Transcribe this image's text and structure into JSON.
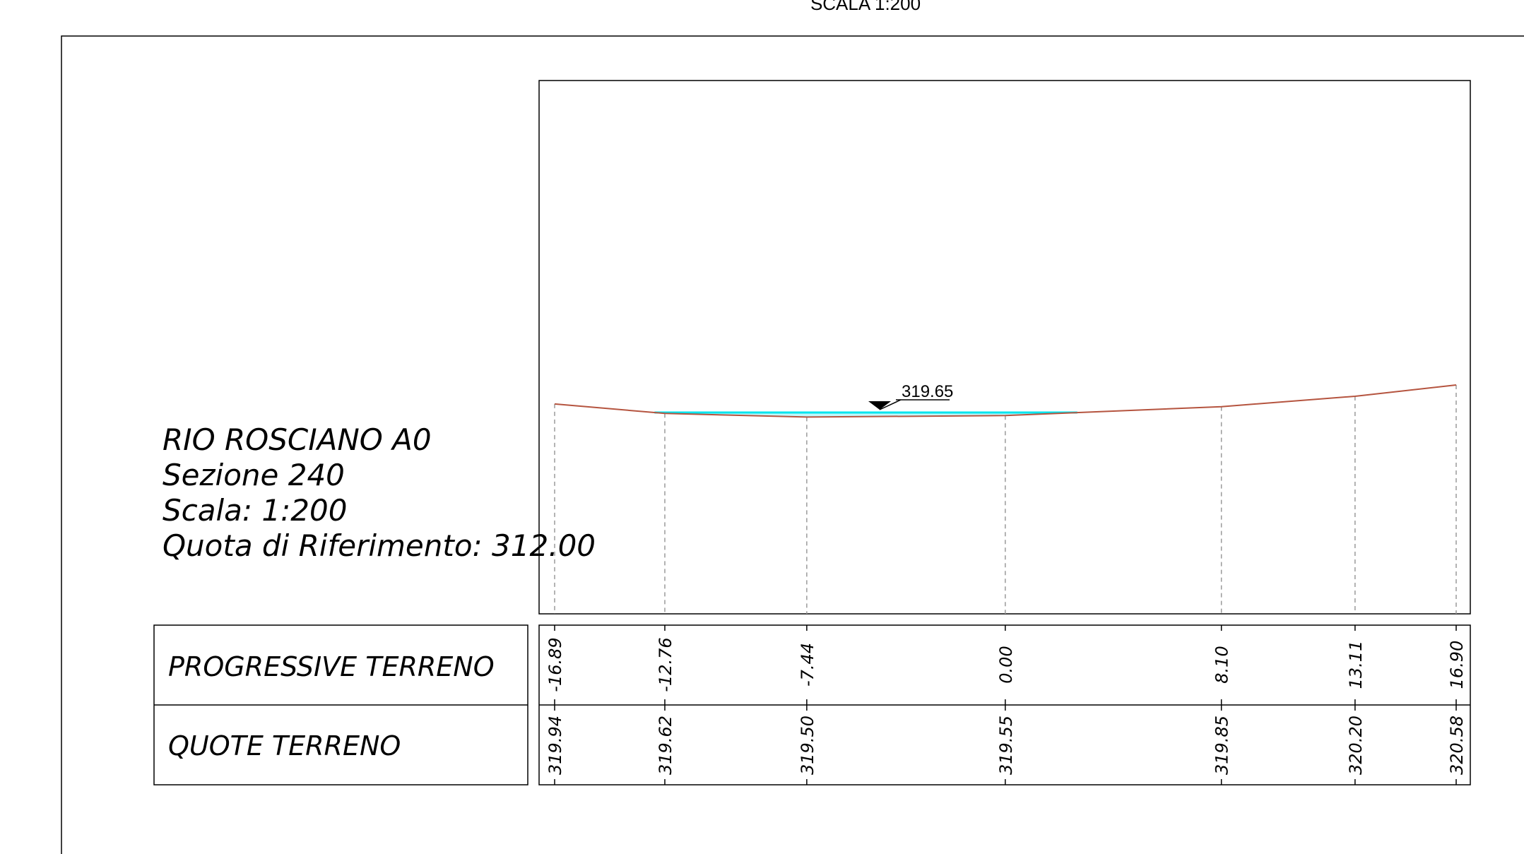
{
  "header": {
    "title": "SCALA 1:200"
  },
  "info": {
    "line1": "RIO ROSCIANO A0",
    "line2": "Sezione 240",
    "line3": "Scala: 1:200",
    "line4": "Quota di Riferimento: 312.00"
  },
  "table": {
    "row1_label": "PROGRESSIVE TERRENO",
    "row2_label": "QUOTE TERRENO"
  },
  "water_level": {
    "label": "319.65",
    "value": 319.65
  },
  "colors": {
    "terrain": "#b5543f",
    "water": "#00e5ee",
    "frame": "#000000",
    "grid_dashed": "#9a9a9a"
  },
  "chart_data": {
    "type": "line",
    "title": "",
    "xlabel": "",
    "ylabel": "",
    "x": [
      -16.89,
      -12.76,
      -7.44,
      0.0,
      8.1,
      13.11,
      16.9
    ],
    "x_labels": [
      "-16.89",
      "-12.76",
      "-7.44",
      "0.00",
      "8.10",
      "13.11",
      "16.90"
    ],
    "series": [
      {
        "values": [
          319.94,
          319.62,
          319.5,
          319.55,
          319.85,
          320.2,
          320.58
        ]
      }
    ],
    "y_labels": [
      "319.94",
      "319.62",
      "319.50",
      "319.55",
      "319.85",
      "320.20",
      "320.58"
    ],
    "reference_elevation": 312.0,
    "water_level": 319.65,
    "grid": false
  }
}
